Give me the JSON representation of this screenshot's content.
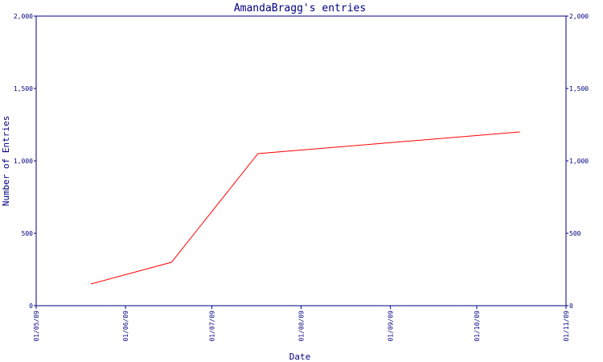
{
  "chart_data": {
    "type": "line",
    "title": "AmandaBragg's entries",
    "xlabel": "Date",
    "ylabel": "Number of Entries",
    "ylim": [
      0,
      2000
    ],
    "y_ticks": [
      0,
      500,
      1000,
      1500,
      2000
    ],
    "y_tick_labels": [
      "0",
      "500",
      "1,000",
      "1,500",
      "2,000"
    ],
    "x_ticks": [
      "01/05/09",
      "01/06/09",
      "01/07/09",
      "01/08/09",
      "01/09/09",
      "01/10/09",
      "01/11/09"
    ],
    "xlim": [
      "01/05/09",
      "01/11/09"
    ],
    "x_dates": [
      "2009-05-01",
      "2009-06-01",
      "2009-07-01",
      "2009-08-01",
      "2009-09-01",
      "2009-10-01",
      "2009-11-01"
    ],
    "grid": false,
    "line_color": "#ff0000",
    "axis_color": "#000080",
    "series": [
      {
        "x": [
          "2009-05-20",
          "2009-06-17",
          "2009-07-17",
          "2009-10-16"
        ],
        "values": [
          150,
          300,
          1050,
          1200
        ]
      }
    ]
  }
}
